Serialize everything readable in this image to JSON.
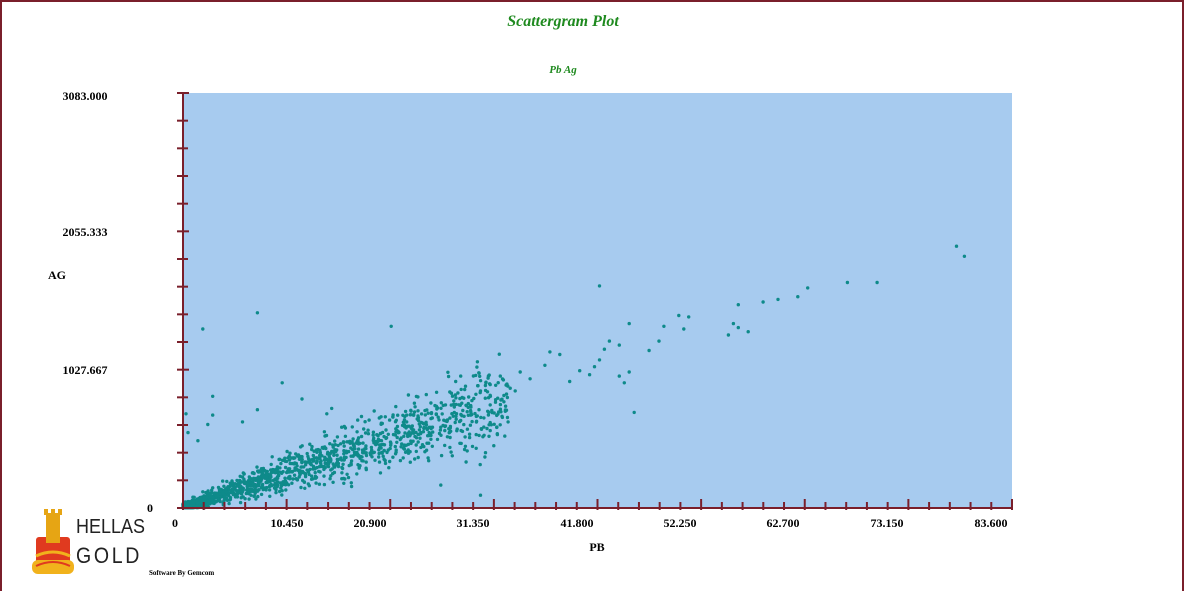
{
  "chart_data": {
    "type": "scatter",
    "title": "Scattergram Plot",
    "subtitle": "Pb Ag",
    "xlabel": "PB",
    "ylabel": "AG",
    "xlim": [
      0,
      83.6
    ],
    "ylim": [
      0,
      3083.0
    ],
    "x_ticks": [
      "0",
      "10.450",
      "20.900",
      "31.350",
      "41.800",
      "52.250",
      "62.700",
      "73.150",
      "83.600"
    ],
    "y_ticks": [
      "0",
      "1027.667",
      "2055.333",
      "3083.000"
    ],
    "grid": false,
    "point_color": "#0e8a8a",
    "plot_background": "#a7cbef",
    "axis_color": "#7a1f2b",
    "series": [
      {
        "trend_slope": 24.5,
        "points": [
          [
            78.0,
            1945
          ],
          [
            78.8,
            1870
          ],
          [
            70.0,
            1675
          ],
          [
            67.0,
            1675
          ],
          [
            63.0,
            1635
          ],
          [
            62.0,
            1570
          ],
          [
            60.0,
            1550
          ],
          [
            58.5,
            1530
          ],
          [
            56.0,
            1510
          ],
          [
            55.5,
            1370
          ],
          [
            56.0,
            1340
          ],
          [
            55.0,
            1285
          ],
          [
            57.0,
            1310
          ],
          [
            50.0,
            1430
          ],
          [
            51.0,
            1420
          ],
          [
            48.5,
            1350
          ],
          [
            48.0,
            1240
          ],
          [
            50.5,
            1330
          ],
          [
            47.0,
            1170
          ],
          [
            45.0,
            1370
          ],
          [
            42.0,
            1650
          ],
          [
            42.5,
            1180
          ],
          [
            43.0,
            1240
          ],
          [
            41.5,
            1050
          ],
          [
            38.0,
            1140
          ],
          [
            44.0,
            1210
          ],
          [
            42.0,
            1100
          ],
          [
            41.0,
            990
          ],
          [
            40.0,
            1020
          ],
          [
            36.5,
            1060
          ],
          [
            37.0,
            1160
          ],
          [
            39.0,
            940
          ],
          [
            44.0,
            980
          ],
          [
            44.5,
            930
          ],
          [
            45.0,
            1010
          ],
          [
            45.5,
            710
          ],
          [
            35.0,
            960
          ],
          [
            34.0,
            1010
          ],
          [
            33.0,
            890
          ],
          [
            31.0,
            830
          ],
          [
            30.0,
            870
          ],
          [
            28.0,
            980
          ],
          [
            27.5,
            940
          ],
          [
            29.0,
            760
          ],
          [
            32.0,
            980
          ],
          [
            33.5,
            870
          ],
          [
            30.5,
            910
          ],
          [
            7.5,
            1450
          ],
          [
            2.0,
            1330
          ],
          [
            21.0,
            1350
          ],
          [
            10.0,
            930
          ],
          [
            3.0,
            830
          ],
          [
            3.0,
            690
          ],
          [
            2.5,
            620
          ],
          [
            0.3,
            700
          ],
          [
            0.5,
            560
          ],
          [
            1.5,
            500
          ],
          [
            7.5,
            730
          ],
          [
            12.0,
            810
          ],
          [
            15.0,
            740
          ],
          [
            26.0,
            170
          ],
          [
            30.0,
            95
          ],
          [
            17.0,
            160
          ],
          [
            14.5,
            700
          ],
          [
            6.0,
            640
          ],
          [
            16.0,
            600
          ],
          [
            18.0,
            680
          ],
          [
            23.0,
            720
          ],
          [
            20.0,
            630
          ],
          [
            25.0,
            780
          ],
          [
            10.5,
            420
          ],
          [
            9.0,
            380
          ],
          [
            8.0,
            270
          ],
          [
            11.0,
            330
          ],
          [
            12.0,
            380
          ],
          [
            13.5,
            300
          ],
          [
            14.5,
            360
          ],
          [
            15.0,
            420
          ],
          [
            16.5,
            410
          ],
          [
            17.0,
            350
          ],
          [
            18.5,
            390
          ],
          [
            19.0,
            450
          ],
          [
            20.0,
            470
          ],
          [
            21.5,
            430
          ],
          [
            22.0,
            520
          ],
          [
            23.0,
            480
          ],
          [
            24.0,
            560
          ],
          [
            25.0,
            510
          ],
          [
            26.0,
            600
          ],
          [
            27.0,
            570
          ],
          [
            28.0,
            650
          ],
          [
            29.0,
            690
          ],
          [
            1.0,
            80
          ],
          [
            2.0,
            120
          ],
          [
            3.0,
            150
          ],
          [
            4.0,
            200
          ],
          [
            5.0,
            170
          ],
          [
            6.0,
            230
          ],
          [
            7.0,
            260
          ],
          [
            2.5,
            60
          ]
        ]
      }
    ]
  },
  "footer": {
    "logo_word_1": "HELLAS",
    "logo_word_2": "GOLD",
    "credit": "Software By Gemcom"
  }
}
